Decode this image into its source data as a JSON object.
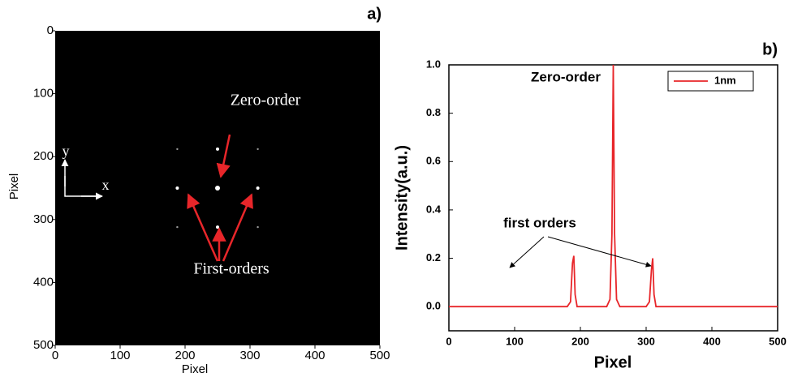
{
  "chart_data": [
    {
      "type": "image",
      "panel_label": "a)",
      "xlabel": "Pixel",
      "ylabel": "Pixel",
      "xlim": [
        0,
        500
      ],
      "ylim": [
        500,
        0
      ],
      "xticks": [
        0,
        100,
        200,
        300,
        400,
        500
      ],
      "yticks": [
        0,
        100,
        200,
        300,
        400,
        500
      ],
      "background": "#000000",
      "color": "#ffffff",
      "x": [
        250,
        188,
        312,
        250,
        250,
        188,
        312,
        188,
        312
      ],
      "values": [
        250,
        250,
        250,
        188,
        312,
        188,
        188,
        312,
        312
      ],
      "annotations": [
        "Zero-order",
        "First-orders",
        "y",
        "x"
      ]
    },
    {
      "type": "line",
      "panel_label": "b)",
      "xlabel": "Pixel",
      "ylabel": "Intensity(a.u.)",
      "xlim": [
        0,
        500
      ],
      "ylim": [
        -0.1,
        1.0
      ],
      "xticks": [
        0,
        100,
        200,
        300,
        400,
        500
      ],
      "yticks": [
        {
          "value": 0,
          "label": "0.0"
        },
        0.2,
        0.4,
        0.6,
        0.8,
        {
          "value": 1,
          "label": "1.0"
        }
      ],
      "legend": "top-right",
      "series": [
        {
          "name": "1nm",
          "color": "#e8262a",
          "x": [
            0,
            180,
            185,
            188,
            190,
            192,
            195,
            240,
            245,
            248,
            250,
            252,
            255,
            260,
            300,
            305,
            308,
            310,
            312,
            315,
            320,
            500
          ],
          "values": [
            0,
            0,
            0.02,
            0.18,
            0.21,
            0.05,
            0,
            0,
            0.03,
            0.3,
            1.0,
            0.3,
            0.03,
            0,
            0,
            0.02,
            0.15,
            0.2,
            0.05,
            0,
            0,
            0
          ]
        }
      ],
      "annotations": [
        "Zero-order",
        "first orders"
      ]
    }
  ]
}
